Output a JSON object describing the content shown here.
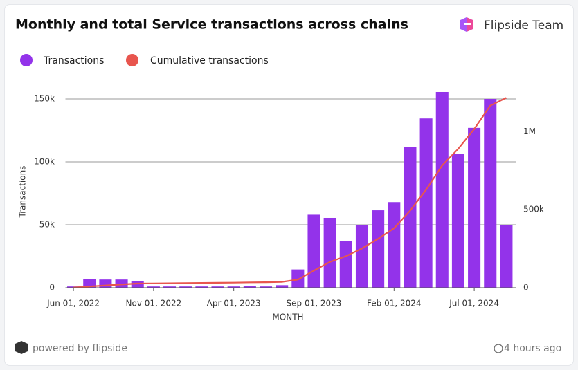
{
  "header": {
    "title": "Monthly and total Service transactions across chains",
    "brand": "Flipside Team"
  },
  "chart_data": {
    "type": "bar_line",
    "categories": [
      "Jun 01, 2022",
      null,
      null,
      null,
      null,
      "Nov 01, 2022",
      null,
      null,
      null,
      null,
      "Apr 01, 2023",
      null,
      null,
      null,
      null,
      "Sep 01, 2023",
      null,
      null,
      null,
      null,
      "Feb 01, 2024",
      null,
      null,
      null,
      null,
      "Jul 01, 2024",
      null,
      null
    ],
    "series": [
      {
        "name": "Transactions",
        "color": "#9333ea",
        "values": [
          1000,
          7000,
          6500,
          6500,
          5500,
          1000,
          1000,
          1000,
          1000,
          1000,
          1000,
          1500,
          1000,
          2000,
          14500,
          58000,
          55500,
          37000,
          49500,
          61500,
          68000,
          112000,
          134500,
          155500,
          106500,
          127000,
          150000,
          50000
        ]
      },
      {
        "name": "Cumulative transactions",
        "color": "#e8554e",
        "axis": "y2",
        "values": [
          1000,
          8000,
          14500,
          21000,
          26500,
          27500,
          28500,
          29500,
          30500,
          31500,
          32500,
          34000,
          35000,
          37000,
          51500,
          109500,
          165000,
          202000,
          251500,
          313000,
          381000,
          493000,
          627500,
          783000,
          889500,
          1016500,
          1166500,
          1216500
        ]
      }
    ],
    "ylim": [
      0,
      160000
    ],
    "yticks": [
      0,
      {
        "value": 50000,
        "label": "50k"
      },
      {
        "value": 100000,
        "label": "100k"
      },
      {
        "value": 150000,
        "label": "150k"
      }
    ],
    "y2lim": [
      0,
      1290000
    ],
    "y2ticks": [
      0,
      {
        "value": 500000,
        "label": "500k"
      },
      {
        "value": 1000000,
        "label": "1M"
      }
    ],
    "ylabel": "Transactions",
    "xlabel": "MONTH",
    "grid": true
  },
  "footer": {
    "powered": "powered by flipside",
    "updated": "4 hours ago"
  }
}
